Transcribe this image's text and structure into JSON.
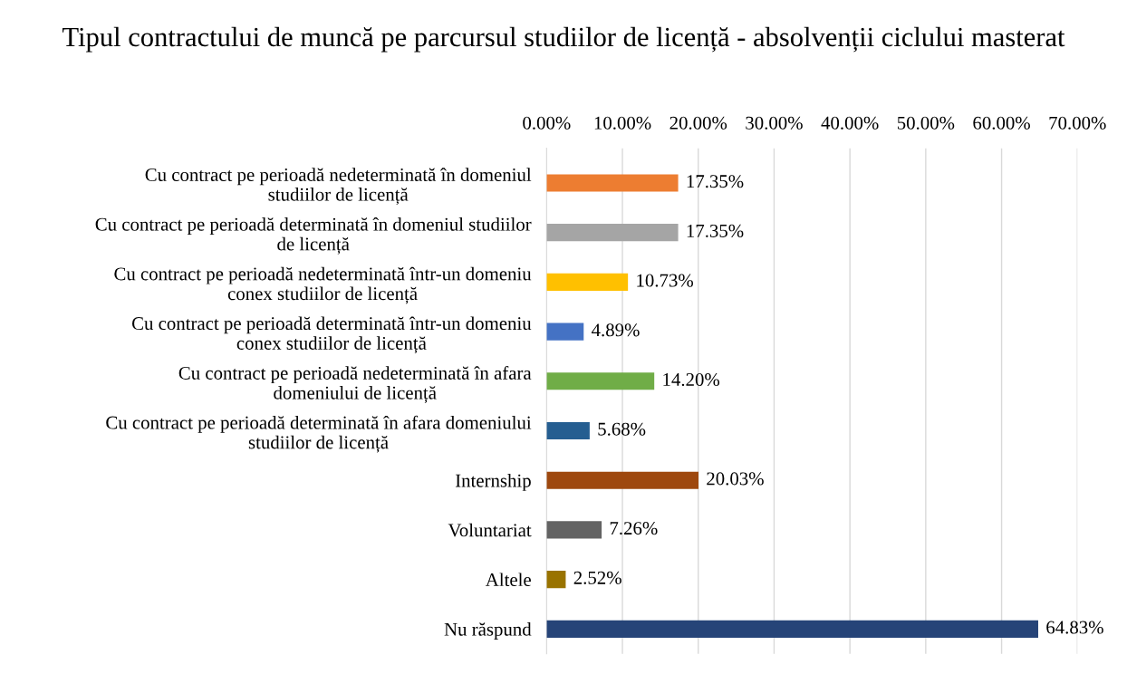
{
  "chart_data": {
    "type": "bar",
    "orientation": "horizontal",
    "title": "Tipul contractului de muncă pe parcursul studiilor de licență - absolvenții ciclului masterat",
    "categories": [
      "Cu contract pe perioadă nedeterminată în domeniul\nstudiilor de licență",
      "Cu contract pe perioadă determinată în domeniul studiilor\nde licență",
      "Cu contract pe perioadă nedeterminată într-un domeniu\nconex studiilor de licență",
      "Cu contract pe perioadă determinată într-un domeniu\nconex studiilor de licență",
      "Cu contract pe perioadă nedeterminată în afara\ndomeniului de licență",
      "Cu contract pe perioadă determinată în afara domeniului\nstudiilor de licență",
      "Internship",
      "Voluntariat",
      "Altele",
      "Nu răspund"
    ],
    "values": [
      17.35,
      17.35,
      10.73,
      4.89,
      14.2,
      5.68,
      20.03,
      7.26,
      2.52,
      64.83
    ],
    "value_labels": [
      "17.35%",
      "17.35%",
      "10.73%",
      "4.89%",
      "14.20%",
      "5.68%",
      "20.03%",
      "7.26%",
      "2.52%",
      "64.83%"
    ],
    "colors": [
      "#ed7d31",
      "#a5a5a5",
      "#ffc000",
      "#4472c4",
      "#70ad47",
      "#255e91",
      "#9e480e",
      "#636363",
      "#997300",
      "#264478"
    ],
    "xlim": [
      0,
      70
    ],
    "xticks": [
      {
        "value": 0,
        "label": "0.00%"
      },
      {
        "value": 10,
        "label": "10.00%"
      },
      {
        "value": 20,
        "label": "20.00%"
      },
      {
        "value": 30,
        "label": "30.00%"
      },
      {
        "value": 40,
        "label": "40.00%"
      },
      {
        "value": 50,
        "label": "50.00%"
      },
      {
        "value": 60,
        "label": "60.00%"
      },
      {
        "value": 70,
        "label": "70.00%"
      }
    ],
    "grid": "x",
    "legend": false
  }
}
